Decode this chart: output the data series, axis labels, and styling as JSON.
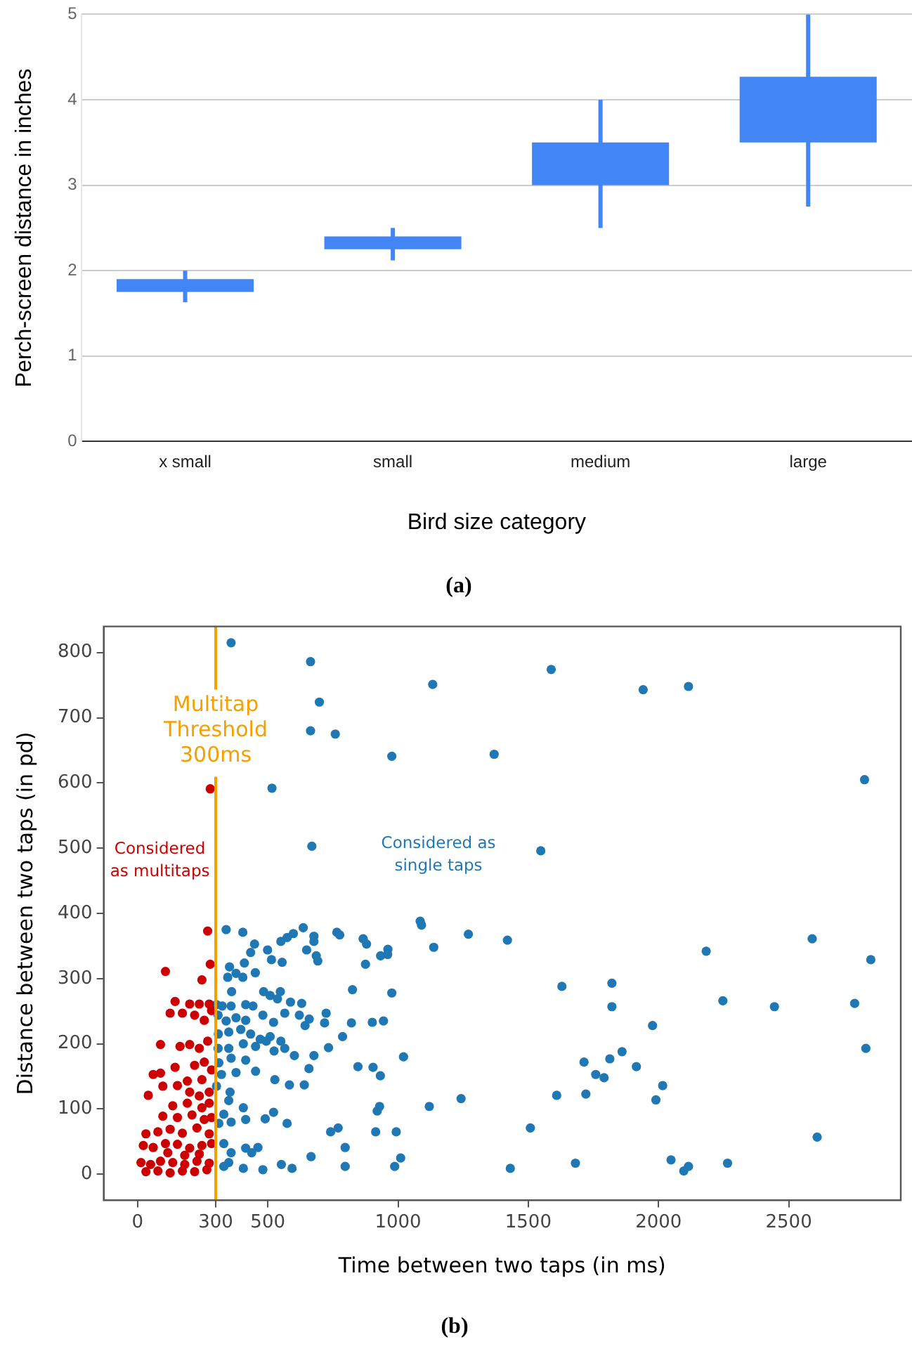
{
  "chart_data": [
    {
      "type": "candlestick",
      "title": "(a)",
      "xlabel": "Bird size category",
      "ylabel": "Perch-screen distance in inches",
      "categories": [
        "x small",
        "small",
        "medium",
        "large"
      ],
      "ohlc": [
        [
          1.75,
          2.0,
          1.63,
          1.9
        ],
        [
          2.25,
          2.5,
          2.12,
          2.4
        ],
        [
          3.0,
          4.0,
          2.5,
          3.5
        ],
        [
          3.5,
          5.0,
          2.75,
          4.27
        ]
      ],
      "color": "#4285f4",
      "ylim": [
        0,
        5
      ],
      "yticks": [
        0,
        1,
        2,
        3,
        4,
        5
      ],
      "grid": "y"
    },
    {
      "type": "scatter",
      "title": "(b)",
      "xlabel": "Time between two taps (in ms)",
      "ylabel": "Distance between two taps (in pd)",
      "xlim": [
        -130,
        2930
      ],
      "ylim": [
        -40,
        840
      ],
      "xticks": [
        0,
        300,
        500,
        1000,
        1500,
        2000,
        2500
      ],
      "yticks": [
        0,
        100,
        200,
        300,
        400,
        500,
        600,
        700,
        800
      ],
      "grid": false,
      "marker": "circle",
      "ref_lines": [
        {
          "axis": "x",
          "value": 300,
          "label": "Multitap Threshold 300ms",
          "color": "#f5a000"
        }
      ],
      "annotations": [
        "Considered as multitaps",
        "Considered as single taps"
      ],
      "series": [
        {
          "color": "#cc0000",
          "x": [
            279,
            269,
            279,
            107,
            247,
            144,
            200,
            237,
            275,
            125,
            172,
            219,
            256,
            284,
            88,
            163,
            200,
            237,
            269,
            144,
            219,
            256,
            284,
            60,
            88,
            191,
            247,
            97,
            153,
            200,
            237,
            275,
            41,
            135,
            191,
            247,
            275,
            97,
            153,
            209,
            256,
            284,
            32,
            78,
            125,
            172,
            228,
            275,
            22,
            60,
            107,
            153,
            200,
            247,
            284,
            13,
            50,
            88,
            135,
            181,
            228,
            275,
            32,
            78,
            125,
            172,
            219,
            266,
            116,
            181,
            237
          ],
          "values": [
            591,
            373,
            322,
            311,
            298,
            265,
            261,
            261,
            261,
            247,
            247,
            244,
            236,
            251,
            199,
            196,
            199,
            193,
            204,
            164,
            167,
            172,
            160,
            153,
            155,
            143,
            145,
            135,
            136,
            126,
            120,
            126,
            121,
            105,
            109,
            102,
            109,
            89,
            87,
            91,
            84,
            87,
            62,
            65,
            69,
            63,
            71,
            62,
            44,
            41,
            47,
            46,
            40,
            44,
            47,
            18,
            15,
            20,
            18,
            15,
            20,
            17,
            4,
            5,
            2,
            5,
            4,
            7,
            33,
            29,
            31
          ]
        },
        {
          "color": "#1f77b4",
          "x": [
            359,
            664,
            698,
            664,
            759,
            976,
            516,
            669,
            1133,
            1369,
            1588,
            1548,
            1941,
            2115,
            2791,
            2590,
            2183,
            2815,
            1629,
            1821,
            1821,
            2247,
            2445,
            2753,
            1977,
            2796,
            1714,
            1813,
            1860,
            1759,
            1791,
            1915,
            1609,
            1721,
            2016,
            1990,
            1508,
            2609,
            1681,
            2048,
            2097,
            2115,
            2265,
            1085,
            1090,
            1270,
            1420,
            1137,
            1431,
            1242,
            1120,
            1021,
            976,
            961,
            960,
            933,
            875,
            879,
            866,
            825,
            944,
            901,
            821,
            787,
            846,
            904,
            932,
            929,
            920,
            993,
            914,
            1010,
            987,
            797,
            797,
            770,
            741,
            666,
            593,
            552,
            340,
            404,
            449,
            434,
            499,
            550,
            574,
            598,
            636,
            677,
            677,
            765,
            776,
            649,
            686,
            692,
            514,
            555,
            353,
            346,
            378,
            404,
            410,
            452,
            361,
            484,
            509,
            548,
            537,
            303,
            325,
            359,
            415,
            443,
            587,
            630,
            565,
            621,
            659,
            724,
            718,
            643,
            309,
            340,
            378,
            415,
            481,
            522,
            310,
            350,
            396,
            434,
            471,
            509,
            550,
            565,
            602,
            677,
            733,
            658,
            309,
            350,
            406,
            453,
            494,
            524,
            312,
            359,
            415,
            453,
            527,
            583,
            640,
            322,
            378,
            303,
            355,
            350,
            406,
            331,
            312,
            359,
            415,
            490,
            522,
            574,
            331,
            359,
            415,
            438,
            462,
            350,
            406,
            481,
            331
          ],
          "values": [
            815,
            786,
            724,
            680,
            675,
            641,
            592,
            503,
            751,
            644,
            774,
            496,
            743,
            748,
            605,
            361,
            342,
            329,
            288,
            293,
            257,
            266,
            257,
            262,
            228,
            193,
            172,
            177,
            188,
            153,
            148,
            165,
            121,
            123,
            136,
            114,
            71,
            57,
            17,
            22,
            5,
            12,
            17,
            388,
            382,
            368,
            359,
            348,
            9,
            116,
            104,
            180,
            278,
            345,
            337,
            335,
            322,
            353,
            361,
            283,
            235,
            233,
            232,
            211,
            165,
            164,
            151,
            104,
            97,
            65,
            65,
            25,
            12,
            12,
            41,
            71,
            65,
            27,
            9,
            15,
            375,
            371,
            353,
            340,
            344,
            357,
            363,
            369,
            378,
            365,
            357,
            371,
            367,
            344,
            335,
            327,
            329,
            325,
            318,
            302,
            308,
            302,
            324,
            309,
            280,
            280,
            274,
            280,
            269,
            260,
            258,
            258,
            260,
            258,
            264,
            262,
            247,
            244,
            238,
            247,
            232,
            228,
            244,
            235,
            240,
            236,
            244,
            233,
            215,
            218,
            222,
            215,
            207,
            211,
            204,
            193,
            182,
            182,
            194,
            162,
            193,
            193,
            200,
            196,
            204,
            189,
            171,
            178,
            175,
            158,
            145,
            137,
            137,
            153,
            156,
            135,
            126,
            113,
            102,
            92,
            78,
            80,
            84,
            85,
            95,
            78,
            47,
            33,
            40,
            33,
            41,
            18,
            9,
            7,
            12
          ]
        }
      ]
    }
  ]
}
